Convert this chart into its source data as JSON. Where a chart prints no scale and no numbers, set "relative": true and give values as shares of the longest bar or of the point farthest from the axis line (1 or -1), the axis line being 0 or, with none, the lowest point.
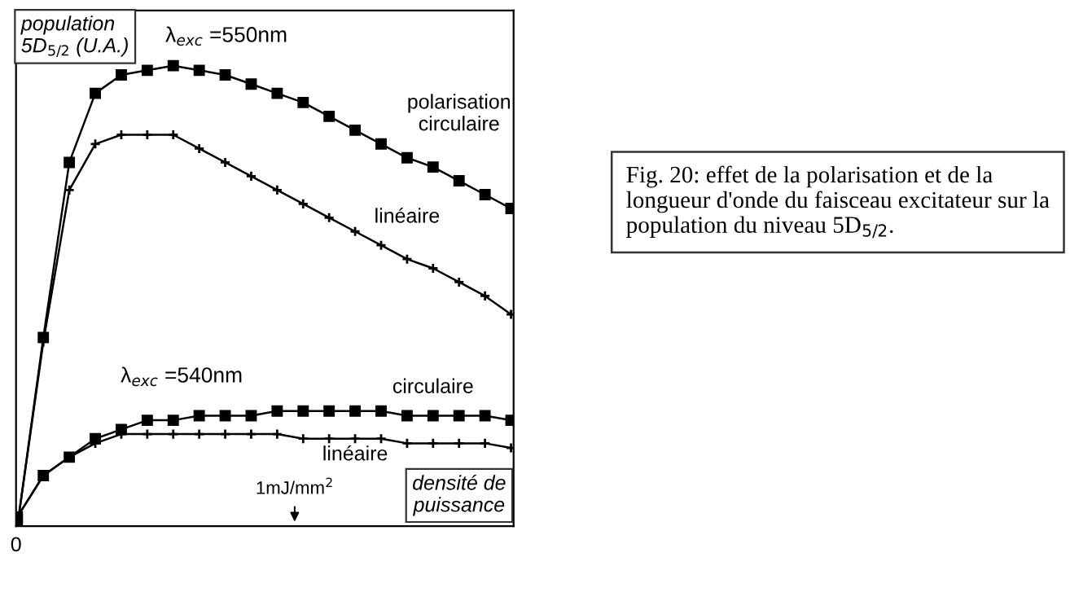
{
  "chart_data": {
    "type": "line",
    "relative": true,
    "ylabel": "population\n5D$_{5/2}$ (U.A.)",
    "xlabel": "densité de\npuissance",
    "categories": [
      null,
      null,
      null,
      null,
      null,
      null,
      null,
      null,
      null,
      null,
      null,
      null,
      null,
      null,
      null,
      null,
      null,
      null,
      null,
      null
    ],
    "grid": false,
    "legend": false,
    "line_style": "solid",
    "annotations": [
      "λ$_{exc}$ =550nm",
      "λ$_{exc}$ =540nm",
      "0",
      "1mJ/mm$^{2}$",
      "Fig. 20: effet de la polarisation et de la longueur d'onde du faisceau excitateur sur la population du niveau 5D$_{5/2}$."
    ],
    "series": [
      {
        "name": "polarisation\ncirculaire",
        "color": "#000000",
        "marker": "square",
        "values": [
          0,
          0.41,
          0.79,
          0.94,
          0.98,
          0.99,
          1.0,
          0.99,
          0.98,
          0.96,
          0.94,
          0.92,
          0.89,
          0.86,
          0.83,
          0.8,
          0.78,
          0.75,
          0.72,
          0.69
        ]
      },
      {
        "name": "linéaire",
        "color": "#000000",
        "marker": "cross",
        "values": [
          0,
          0.4,
          0.73,
          0.83,
          0.85,
          0.85,
          0.85,
          0.82,
          0.79,
          0.76,
          0.73,
          0.7,
          0.67,
          0.64,
          0.61,
          0.58,
          0.56,
          0.53,
          0.5,
          0.46
        ]
      },
      {
        "name": "circulaire",
        "color": "#000000",
        "marker": "square",
        "values": [
          0.02,
          0.11,
          0.15,
          0.19,
          0.21,
          0.23,
          0.23,
          0.24,
          0.24,
          0.24,
          0.25,
          0.25,
          0.25,
          0.25,
          0.25,
          0.24,
          0.24,
          0.24,
          0.24,
          0.23
        ]
      },
      {
        "name": "linéaire",
        "color": "#000000",
        "marker": "cross",
        "values": [
          0.02,
          0.11,
          0.15,
          0.18,
          0.2,
          0.2,
          0.2,
          0.2,
          0.2,
          0.2,
          0.2,
          0.19,
          0.19,
          0.19,
          0.19,
          0.18,
          0.18,
          0.18,
          0.18,
          0.17
        ]
      }
    ]
  }
}
